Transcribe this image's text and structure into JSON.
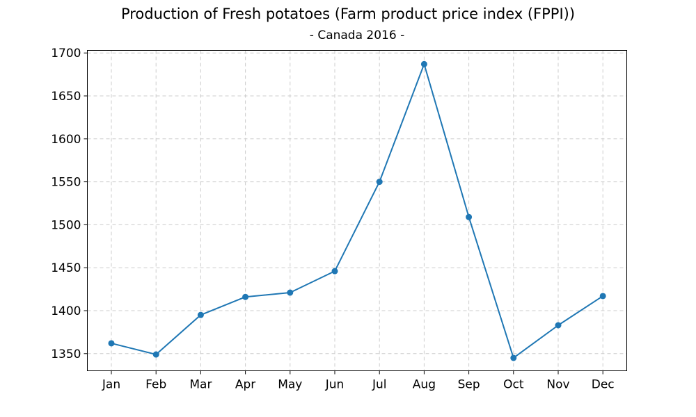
{
  "chart_data": {
    "type": "line",
    "title": "Production of Fresh potatoes (Farm product price index (FPPI))",
    "subtitle": "- Canada 2016 -",
    "xlabel": "",
    "ylabel": "",
    "categories": [
      "Jan",
      "Feb",
      "Mar",
      "Apr",
      "May",
      "Jun",
      "Jul",
      "Aug",
      "Sep",
      "Oct",
      "Nov",
      "Dec"
    ],
    "series": [
      {
        "values": [
          1362,
          1349,
          1395,
          1416,
          1421,
          1446,
          1550,
          1687,
          1509,
          1345,
          1383,
          1417
        ]
      }
    ],
    "ylim": [
      1330,
      1703
    ],
    "yticks": [
      "1350",
      "1400",
      "1450",
      "1500",
      "1550",
      "1600",
      "1650",
      "1700"
    ],
    "grid": true,
    "legend": "none",
    "colors": {
      "line": "#1f77b4",
      "grid": "#cccccc"
    }
  }
}
